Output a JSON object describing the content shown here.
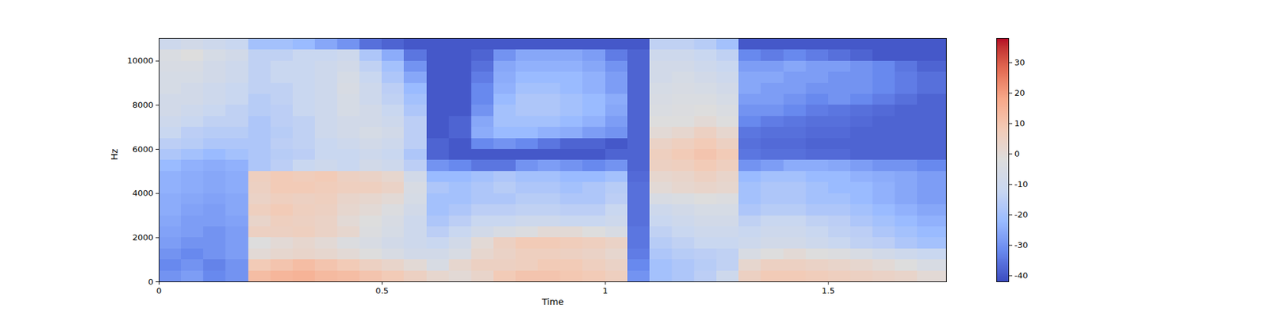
{
  "chart_data": {
    "type": "heatmap",
    "x_label": "Time",
    "y_label": "Hz",
    "xlim": [
      0,
      1.765
    ],
    "ylim": [
      0,
      11025
    ],
    "xticks": [
      0,
      0.5,
      1,
      1.5
    ],
    "yticks": [
      0,
      2000,
      4000,
      6000,
      8000,
      10000
    ],
    "color": "coolwarm",
    "colorbar": {
      "range": [
        -42,
        38
      ],
      "ticks": [
        -40,
        -30,
        -20,
        -10,
        0,
        10,
        20,
        30
      ]
    },
    "x_edges": [
      0,
      0.05,
      0.1,
      0.15,
      0.2,
      0.25,
      0.3,
      0.35,
      0.4,
      0.45,
      0.5,
      0.55,
      0.6,
      0.65,
      0.7,
      0.75,
      0.8,
      0.85,
      0.9,
      0.95,
      1,
      1.05,
      1.1,
      1.15,
      1.2,
      1.25,
      1.3,
      1.35,
      1.4,
      1.45,
      1.5,
      1.55,
      1.6,
      1.65,
      1.7,
      1.765
    ],
    "y_edges": [
      0,
      500,
      1000,
      1500,
      2000,
      2500,
      3000,
      3500,
      4000,
      4500,
      5000,
      5500,
      6000,
      6500,
      7000,
      7500,
      8000,
      8500,
      9000,
      9500,
      10000,
      10500,
      11025
    ],
    "values": [
      [
        -30,
        -28,
        -32,
        -30,
        12,
        14,
        15,
        13,
        12,
        10,
        8,
        5,
        2,
        0,
        3,
        8,
        10,
        10,
        9,
        8,
        6,
        -30,
        -20,
        -18,
        -15,
        -10,
        5,
        8,
        8,
        7,
        6,
        5,
        4,
        3,
        0
      ],
      [
        -32,
        -30,
        -33,
        -30,
        8,
        10,
        12,
        10,
        8,
        5,
        3,
        0,
        -5,
        2,
        5,
        5,
        6,
        8,
        8,
        6,
        4,
        -32,
        -20,
        -18,
        -16,
        -14,
        2,
        5,
        5,
        4,
        3,
        2,
        0,
        -2,
        -5
      ],
      [
        -30,
        -32,
        -30,
        -28,
        0,
        2,
        3,
        2,
        0,
        -2,
        -5,
        -8,
        -8,
        -5,
        2,
        4,
        6,
        6,
        5,
        4,
        2,
        -34,
        -18,
        -16,
        -15,
        -14,
        -5,
        -2,
        0,
        -2,
        -3,
        -5,
        -8,
        -10,
        -12
      ],
      [
        -28,
        -30,
        -30,
        -28,
        -2,
        0,
        2,
        0,
        -3,
        -5,
        -8,
        -10,
        -12,
        -8,
        0,
        5,
        8,
        8,
        7,
        6,
        4,
        -35,
        -16,
        -14,
        -12,
        -12,
        -10,
        -8,
        -8,
        -10,
        -12,
        -14,
        -15,
        -18,
        -20
      ],
      [
        -27,
        -28,
        -30,
        -28,
        5,
        5,
        6,
        4,
        2,
        -3,
        -6,
        -10,
        -15,
        -12,
        -8,
        -5,
        -3,
        0,
        0,
        -2,
        -5,
        -35,
        -14,
        -12,
        -10,
        -10,
        -12,
        -10,
        -10,
        -12,
        -14,
        -15,
        -18,
        -20,
        -22
      ],
      [
        -26,
        -28,
        -28,
        -27,
        3,
        6,
        5,
        4,
        0,
        -2,
        -5,
        -10,
        -18,
        -15,
        -12,
        -12,
        -10,
        -10,
        -12,
        -12,
        -10,
        -36,
        -12,
        -10,
        -8,
        -8,
        -14,
        -12,
        -12,
        -14,
        -15,
        -18,
        -20,
        -22,
        -24
      ],
      [
        -25,
        -27,
        -28,
        -26,
        6,
        8,
        6,
        5,
        2,
        0,
        -3,
        -8,
        -20,
        -18,
        -15,
        -15,
        -14,
        -14,
        -15,
        -15,
        -12,
        -36,
        -10,
        -8,
        -6,
        -6,
        -18,
        -16,
        -16,
        -18,
        -18,
        -20,
        -22,
        -24,
        -26
      ],
      [
        -25,
        -26,
        -27,
        -26,
        4,
        6,
        5,
        6,
        3,
        2,
        0,
        -6,
        -20,
        -20,
        -18,
        -18,
        -16,
        -16,
        -18,
        -18,
        -15,
        -36,
        -5,
        -4,
        -2,
        -3,
        -20,
        -18,
        -18,
        -20,
        -20,
        -22,
        -24,
        -26,
        -28
      ],
      [
        -24,
        -25,
        -26,
        -25,
        5,
        8,
        8,
        7,
        6,
        6,
        4,
        -5,
        -18,
        -20,
        -18,
        -16,
        -18,
        -18,
        -20,
        -18,
        -16,
        -36,
        0,
        2,
        3,
        2,
        -20,
        -18,
        -18,
        -20,
        -22,
        -22,
        -24,
        -26,
        -28
      ],
      [
        -24,
        -25,
        -26,
        -25,
        6,
        8,
        7,
        8,
        5,
        4,
        2,
        -8,
        -22,
        -22,
        -20,
        -18,
        -20,
        -20,
        -22,
        -22,
        -20,
        -37,
        2,
        3,
        5,
        3,
        -22,
        -20,
        -20,
        -22,
        -22,
        -24,
        -25,
        -26,
        -28
      ],
      [
        -22,
        -24,
        -25,
        -24,
        -18,
        -15,
        -12,
        -10,
        -12,
        -8,
        -10,
        -15,
        -30,
        -32,
        -35,
        -35,
        -30,
        -28,
        -30,
        -32,
        -30,
        -38,
        5,
        6,
        8,
        6,
        -30,
        -28,
        -25,
        -25,
        -26,
        -28,
        -30,
        -30,
        -32
      ],
      [
        -18,
        -20,
        -22,
        -20,
        -18,
        -16,
        -15,
        -12,
        -12,
        -10,
        -12,
        -18,
        -38,
        -40,
        -40,
        -40,
        -40,
        -40,
        -40,
        -40,
        -38,
        -38,
        6,
        8,
        10,
        8,
        -35,
        -36,
        -36,
        -37,
        -37,
        -38,
        -38,
        -38,
        -38
      ],
      [
        -15,
        -16,
        -18,
        -18,
        -18,
        -15,
        -14,
        -12,
        -10,
        -8,
        -10,
        -15,
        -38,
        -40,
        -32,
        -30,
        -32,
        -35,
        -38,
        -38,
        -40,
        -38,
        4,
        6,
        8,
        5,
        -36,
        -37,
        -37,
        -38,
        -38,
        -38,
        -38,
        -38,
        -38
      ],
      [
        -12,
        -15,
        -16,
        -16,
        -18,
        -16,
        -14,
        -10,
        -8,
        -6,
        -8,
        -15,
        -40,
        -38,
        -25,
        -22,
        -22,
        -24,
        -25,
        -28,
        -30,
        -38,
        0,
        2,
        5,
        2,
        -35,
        -36,
        -36,
        -37,
        -37,
        -38,
        -38,
        -38,
        -38
      ],
      [
        -10,
        -12,
        -14,
        -14,
        -18,
        -15,
        -14,
        -10,
        -8,
        -8,
        -10,
        -15,
        -40,
        -38,
        -26,
        -20,
        -20,
        -20,
        -22,
        -24,
        -28,
        -38,
        -2,
        -2,
        0,
        -2,
        -32,
        -34,
        -35,
        -36,
        -36,
        -37,
        -38,
        -38,
        -38
      ],
      [
        -8,
        -10,
        -12,
        -14,
        -16,
        -15,
        -12,
        -10,
        -6,
        -8,
        -12,
        -18,
        -40,
        -40,
        -30,
        -20,
        -18,
        -18,
        -20,
        -22,
        -26,
        -38,
        -4,
        -3,
        -2,
        -4,
        -30,
        -30,
        -32,
        -34,
        -35,
        -36,
        -37,
        -38,
        -38
      ],
      [
        -8,
        -8,
        -10,
        -12,
        -16,
        -14,
        -12,
        -10,
        -6,
        -10,
        -14,
        -20,
        -40,
        -40,
        -32,
        -22,
        -18,
        -18,
        -20,
        -22,
        -25,
        -38,
        -5,
        -4,
        -4,
        -6,
        -28,
        -28,
        -30,
        -32,
        -30,
        -32,
        -34,
        -36,
        -38
      ],
      [
        -6,
        -8,
        -10,
        -12,
        -14,
        -14,
        -12,
        -10,
        -5,
        -10,
        -15,
        -22,
        -40,
        -40,
        -32,
        -24,
        -20,
        -20,
        -22,
        -24,
        -28,
        -38,
        -6,
        -5,
        -6,
        -8,
        -26,
        -28,
        -28,
        -30,
        -30,
        -30,
        -32,
        -34,
        -36
      ],
      [
        -6,
        -6,
        -8,
        -10,
        -14,
        -12,
        -12,
        -10,
        -6,
        -12,
        -18,
        -26,
        -40,
        -40,
        -34,
        -25,
        -22,
        -22,
        -22,
        -24,
        -28,
        -38,
        -8,
        -6,
        -8,
        -10,
        -26,
        -26,
        -28,
        -28,
        -30,
        -30,
        -32,
        -34,
        -36
      ],
      [
        -5,
        -5,
        -8,
        -10,
        -14,
        -12,
        -12,
        -10,
        -8,
        -14,
        -20,
        -30,
        -40,
        -40,
        -36,
        -26,
        -24,
        -24,
        -24,
        -26,
        -30,
        -38,
        -8,
        -8,
        -10,
        -12,
        -28,
        -28,
        -26,
        -28,
        -28,
        -30,
        -32,
        -35,
        -38
      ],
      [
        -4,
        -2,
        -6,
        -8,
        -14,
        -14,
        -12,
        -12,
        -10,
        -18,
        -25,
        -35,
        -40,
        -40,
        -38,
        -30,
        -26,
        -26,
        -26,
        -28,
        -34,
        -38,
        -10,
        -10,
        -12,
        -14,
        -32,
        -34,
        -32,
        -34,
        -36,
        -38,
        -40,
        -40,
        -40
      ],
      [
        -10,
        -8,
        -10,
        -12,
        -20,
        -20,
        -22,
        -26,
        -30,
        -36,
        -38,
        -40,
        -40,
        -40,
        -40,
        -40,
        -40,
        -40,
        -40,
        -40,
        -40,
        -40,
        -14,
        -14,
        -16,
        -20,
        -40,
        -40,
        -40,
        -40,
        -40,
        -40,
        -40,
        -40,
        -40
      ]
    ]
  }
}
